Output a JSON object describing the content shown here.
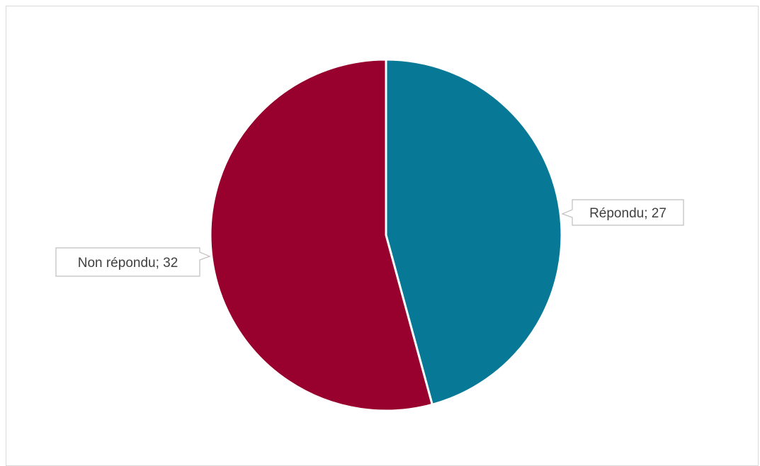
{
  "chart_data": {
    "type": "pie",
    "title": "",
    "slices": [
      {
        "label": "Répondu",
        "value": 27,
        "color": "#077996",
        "data_label": "Répondu; 27"
      },
      {
        "label": "Non répondu",
        "value": 32,
        "color": "#98002E",
        "data_label": "Non répondu; 32"
      }
    ],
    "legend": "none",
    "data_label_format": "category; value"
  }
}
